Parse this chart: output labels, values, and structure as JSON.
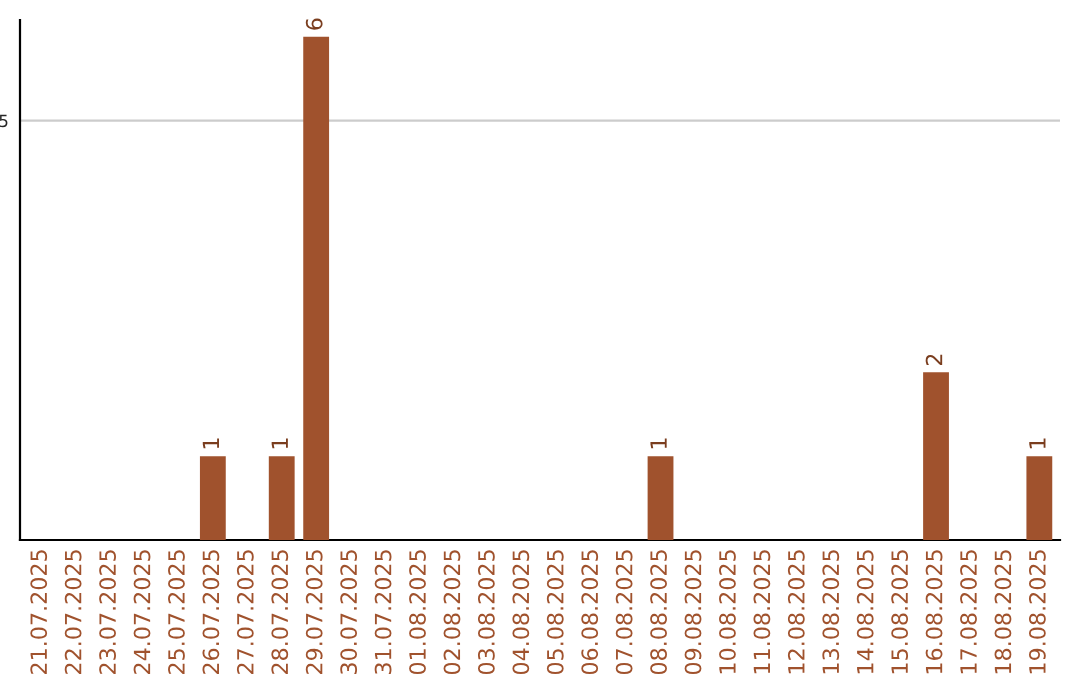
{
  "chart_data": {
    "type": "bar",
    "categories": [
      "21.07.2025",
      "22.07.2025",
      "23.07.2025",
      "24.07.2025",
      "25.07.2025",
      "26.07.2025",
      "27.07.2025",
      "28.07.2025",
      "29.07.2025",
      "30.07.2025",
      "31.07.2025",
      "01.08.2025",
      "02.08.2025",
      "03.08.2025",
      "04.08.2025",
      "05.08.2025",
      "06.08.2025",
      "07.08.2025",
      "08.08.2025",
      "09.08.2025",
      "10.08.2025",
      "11.08.2025",
      "12.08.2025",
      "13.08.2025",
      "14.08.2025",
      "15.08.2025",
      "16.08.2025",
      "17.08.2025",
      "18.08.2025",
      "19.08.2025"
    ],
    "values": [
      0,
      0,
      0,
      0,
      0,
      1,
      0,
      1,
      6,
      0,
      0,
      0,
      0,
      0,
      0,
      0,
      0,
      0,
      1,
      0,
      0,
      0,
      0,
      0,
      0,
      0,
      2,
      0,
      0,
      1
    ],
    "value_labels": [
      null,
      null,
      null,
      null,
      null,
      "1",
      null,
      "1",
      "6",
      null,
      null,
      null,
      null,
      null,
      null,
      null,
      null,
      null,
      "1",
      null,
      null,
      null,
      null,
      null,
      null,
      null,
      "2",
      null,
      null,
      "1"
    ],
    "color": "#a0522d",
    "ylim": [
      0,
      6.2
    ],
    "yticks": [
      5
    ],
    "grid": "y",
    "legend": false
  }
}
